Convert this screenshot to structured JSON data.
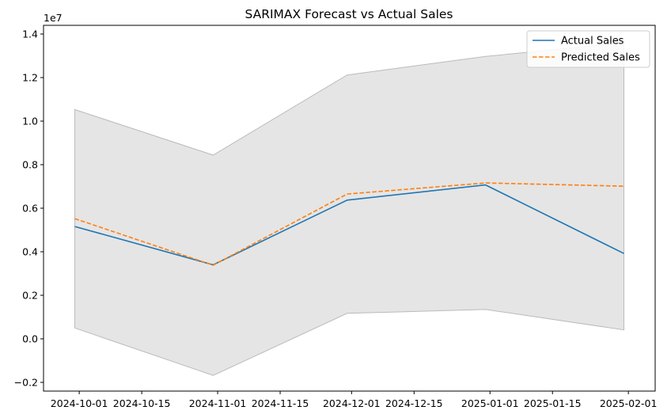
{
  "chart_data": {
    "type": "line",
    "title": "SARIMAX Forecast vs Actual Sales",
    "xlabel": "",
    "ylabel": "",
    "y_offset_label": "1e7",
    "x": [
      "2024-09-30",
      "2024-10-31",
      "2024-11-30",
      "2024-12-31",
      "2025-01-31"
    ],
    "x_tick_dates": [
      "2024-10-01",
      "2024-10-15",
      "2024-11-01",
      "2024-11-15",
      "2024-12-01",
      "2024-12-15",
      "2025-01-01",
      "2025-01-15",
      "2025-02-01"
    ],
    "x_tick_labels": [
      "2024-10-01",
      "2024-10-15",
      "2024-11-01",
      "2024-11-15",
      "2024-12-01",
      "2024-12-15",
      "2025-01-01",
      "2025-01-15",
      "2025-02-01"
    ],
    "xlim": [
      "2024-09-23",
      "2025-02-07"
    ],
    "ylim": [
      -0.24,
      1.44
    ],
    "y_ticks": [
      -0.2,
      0.0,
      0.2,
      0.4,
      0.6,
      0.8,
      1.0,
      1.2,
      1.4
    ],
    "y_tick_labels": [
      "−0.2",
      "0.0",
      "0.2",
      "0.4",
      "0.6",
      "0.8",
      "1.0",
      "1.2",
      "1.4"
    ],
    "series": [
      {
        "name": "Actual Sales",
        "values": [
          0.516,
          0.34,
          0.637,
          0.707,
          0.392
        ],
        "color": "#1f77b4",
        "style": "solid"
      },
      {
        "name": "Predicted Sales",
        "values": [
          0.552,
          0.338,
          0.665,
          0.716,
          0.701
        ],
        "color": "#ff7f0e",
        "style": "dashed"
      }
    ],
    "confidence_band": {
      "lower": [
        0.05,
        -0.168,
        0.117,
        0.135,
        0.041
      ],
      "upper": [
        1.053,
        0.844,
        1.212,
        1.297,
        1.36
      ],
      "color": "#cccccc"
    },
    "legend_position": "top-right",
    "grid": false
  }
}
